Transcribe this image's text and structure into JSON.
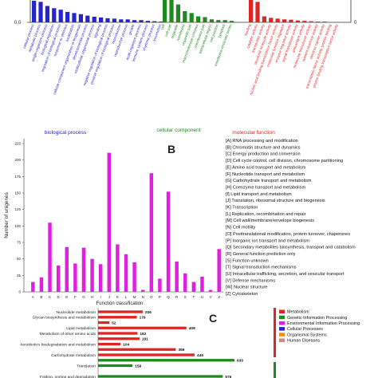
{
  "panelA": {
    "y_left_zero": "0.0",
    "category_labels": [
      "biological process",
      "cellular component",
      "molecular function"
    ],
    "colors": {
      "bp": "#2525cc",
      "cc": "#1c8a1c",
      "mf": "#e02424"
    },
    "chart_data": {
      "type": "bar",
      "series": [
        {
          "group": "biological process",
          "terms": [
            "cellular process",
            "metabolic process",
            "single-organism process",
            "biological regulation",
            "regulation of biological process",
            "response to stimulus",
            "localization",
            "cellular component organization or biogenesis",
            "developmental process",
            "multicellular organismal process",
            "signaling",
            "negative regulation of biological process",
            "positive regulation of biological process",
            "reproduction",
            "reproductive process",
            "growth",
            "multi-organism process",
            "immune system process",
            "rhythmic process",
            "locomotion"
          ],
          "values": [
            58,
            55,
            44,
            38,
            34,
            28,
            25,
            22,
            18,
            15,
            13,
            11,
            10,
            8,
            8,
            6,
            6,
            4,
            3,
            2
          ]
        },
        {
          "group": "cellular component",
          "terms": [
            "cell",
            "cell part",
            "organelle",
            "membrane",
            "organelle part",
            "macromolecular complex",
            "membrane part",
            "extracellular region",
            "cell junction",
            "symplast",
            "membrane-enclosed lumen"
          ],
          "values": [
            60,
            60,
            48,
            30,
            25,
            16,
            14,
            8,
            6,
            6,
            4
          ]
        },
        {
          "group": "molecular function",
          "terms": [
            "binding",
            "catalytic activity",
            "transporter activity",
            "structural molecule activity",
            "nucleic acid binding transcription factor activity",
            "molecular function regulator",
            "enzyme regulator activity",
            "signal transducer activity",
            "antioxidant activity",
            "molecular transducer activity",
            "nutrient reservoir activity",
            "electron carrier activity",
            "transcription factor activity, protein binding",
            "protein binding transcription factor activity"
          ],
          "values": [
            60,
            55,
            16,
            12,
            10,
            8,
            7,
            5,
            4,
            3,
            2,
            2,
            1,
            1
          ]
        }
      ]
    }
  },
  "panelB": {
    "letter": "B",
    "color": "#e020e0",
    "ylabel": "Number of unigenes",
    "xlabel": "Function classification",
    "yticks": [
      "0",
      "25",
      "50",
      "75",
      "100",
      "125",
      "150",
      "175",
      "200",
      "225"
    ],
    "chart_data": {
      "type": "bar",
      "categories": [
        "A",
        "B",
        "C",
        "D",
        "E",
        "F",
        "G",
        "H",
        "I",
        "J",
        "K",
        "L",
        "M",
        "N",
        "O",
        "P",
        "Q",
        "R",
        "S",
        "T",
        "U",
        "V",
        "Z"
      ],
      "values": [
        15,
        22,
        105,
        40,
        68,
        43,
        67,
        50,
        42,
        211,
        72,
        57,
        45,
        3,
        180,
        20,
        152,
        46,
        28,
        15,
        23,
        3,
        65
      ],
      "ylim": [
        0,
        225
      ]
    },
    "legend": [
      "[A] RNA processing and modification",
      "[B] Chromatin structure and dynamics",
      "[C] Energy production and conversion",
      "[D] Cell cycle control, cell division, chromosome partitioning",
      "[E] Amino acid transport and metabolism",
      "[F] Nucleotide transport and metabolism",
      "[G] Carbohydrate transport and metabolism",
      "[H] Coenzyme transport and metabolism",
      "[I] Lipid transport and metabolism",
      "[J] Translation, ribosomal structure and biogenesis",
      "[K] Transcription",
      "[L] Replication, recombination and repair",
      "[M] Cell wall/membrane/envelope biogenesis",
      "[N] Cell motility",
      "[O] Posttranslational modification, protein turnover, chaperones",
      "[P] Inorganic ion transport and metabolism",
      "[Q] Secondary metabolites biosynthesis, transport and catabolism",
      "[R] General function prediction only",
      "[S] Function unknown",
      "[T] Signal transduction mechanisms",
      "[U] Intracellular trafficking, secretion, and vesicular transport",
      "[V] Defense mechanisms",
      "[W] Nuclear structure",
      "[Z] Cytoskeleton"
    ]
  },
  "panelC": {
    "letter": "C",
    "chart_data": {
      "type": "bar",
      "categories": [
        "Nucleotide metabolism",
        "Glycan biosynthesis and metabolism",
        "",
        "Lipid metabolism",
        "Metabolism of other amino acids",
        "",
        "Xenobiotics biodegradation and metabolism",
        "",
        "Carbohydrate metabolism",
        "",
        "Translation",
        "",
        "Folding, sorting and degradation"
      ],
      "values": [
        206,
        179,
        52,
        408,
        182,
        191,
        104,
        359,
        446,
        630,
        159,
        0,
        576
      ],
      "colors": [
        "#e02424",
        "#e02424",
        "#e02424",
        "#e02424",
        "#e02424",
        "#e02424",
        "#e02424",
        "#e02424",
        "#e02424",
        "#1c8a1c",
        "#1c8a1c",
        "#1c8a1c",
        "#1c8a1c"
      ],
      "xlim": [
        0,
        700
      ]
    },
    "value_labels": [
      "206",
      "179",
      "52",
      "408",
      "182",
      "191",
      "104",
      "359",
      "446",
      "630",
      "159",
      "",
      "576"
    ],
    "legend": [
      {
        "label": "Metabolism",
        "color": "#e02424"
      },
      {
        "label": "Genetic Information Processing",
        "color": "#1c8a1c"
      },
      {
        "label": "Environmental Information Processing",
        "color": "#e020e0"
      },
      {
        "label": "Cellular Processes",
        "color": "#2525cc"
      },
      {
        "label": "Organismal Systems",
        "color": "#ff8c00"
      },
      {
        "label": "Human Diseases",
        "color": "#cc8a8a"
      }
    ]
  }
}
